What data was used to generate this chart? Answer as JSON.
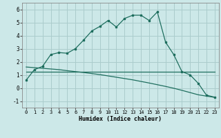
{
  "xlabel": "Humidex (Indice chaleur)",
  "bg_color": "#cce8e8",
  "grid_color": "#aacccc",
  "line_color": "#1e6e5e",
  "xlim": [
    -0.5,
    23.5
  ],
  "ylim": [
    -1.5,
    6.5
  ],
  "xticks": [
    0,
    1,
    2,
    3,
    4,
    5,
    6,
    7,
    8,
    9,
    10,
    11,
    12,
    13,
    14,
    15,
    16,
    17,
    18,
    19,
    20,
    21,
    22,
    23
  ],
  "yticks": [
    -1,
    0,
    1,
    2,
    3,
    4,
    5,
    6
  ],
  "curve1_x": [
    0,
    1,
    2,
    3,
    4,
    5,
    6,
    7,
    8,
    9,
    10,
    11,
    12,
    13,
    14,
    15,
    16,
    17,
    18,
    19,
    20,
    21,
    22,
    23
  ],
  "curve1_y": [
    0.6,
    1.4,
    1.65,
    2.55,
    2.7,
    2.65,
    3.0,
    3.65,
    4.35,
    4.7,
    5.15,
    4.65,
    5.3,
    5.55,
    5.55,
    5.15,
    5.8,
    3.5,
    2.55,
    1.25,
    1.0,
    0.35,
    -0.55,
    -0.7
  ],
  "curve2_x": [
    0,
    1,
    2,
    3,
    4,
    5,
    6,
    7,
    8,
    9,
    10,
    11,
    12,
    13,
    14,
    15,
    16,
    17,
    18,
    19,
    20,
    21,
    22,
    23
  ],
  "curve2_y": [
    1.25,
    1.25,
    1.25,
    1.25,
    1.25,
    1.25,
    1.25,
    1.25,
    1.25,
    1.25,
    1.25,
    1.25,
    1.25,
    1.25,
    1.25,
    1.25,
    1.25,
    1.25,
    1.25,
    1.25,
    1.25,
    1.25,
    1.25,
    1.25
  ],
  "curve3_x": [
    0,
    1,
    2,
    3,
    4,
    5,
    6,
    7,
    8,
    9,
    10,
    11,
    12,
    13,
    14,
    15,
    16,
    17,
    18,
    19,
    20,
    21,
    22,
    23
  ],
  "curve3_y": [
    1.6,
    1.55,
    1.5,
    1.45,
    1.4,
    1.32,
    1.25,
    1.18,
    1.1,
    1.02,
    0.92,
    0.82,
    0.72,
    0.62,
    0.5,
    0.38,
    0.25,
    0.12,
    -0.02,
    -0.18,
    -0.35,
    -0.52,
    -0.62,
    -0.72
  ]
}
